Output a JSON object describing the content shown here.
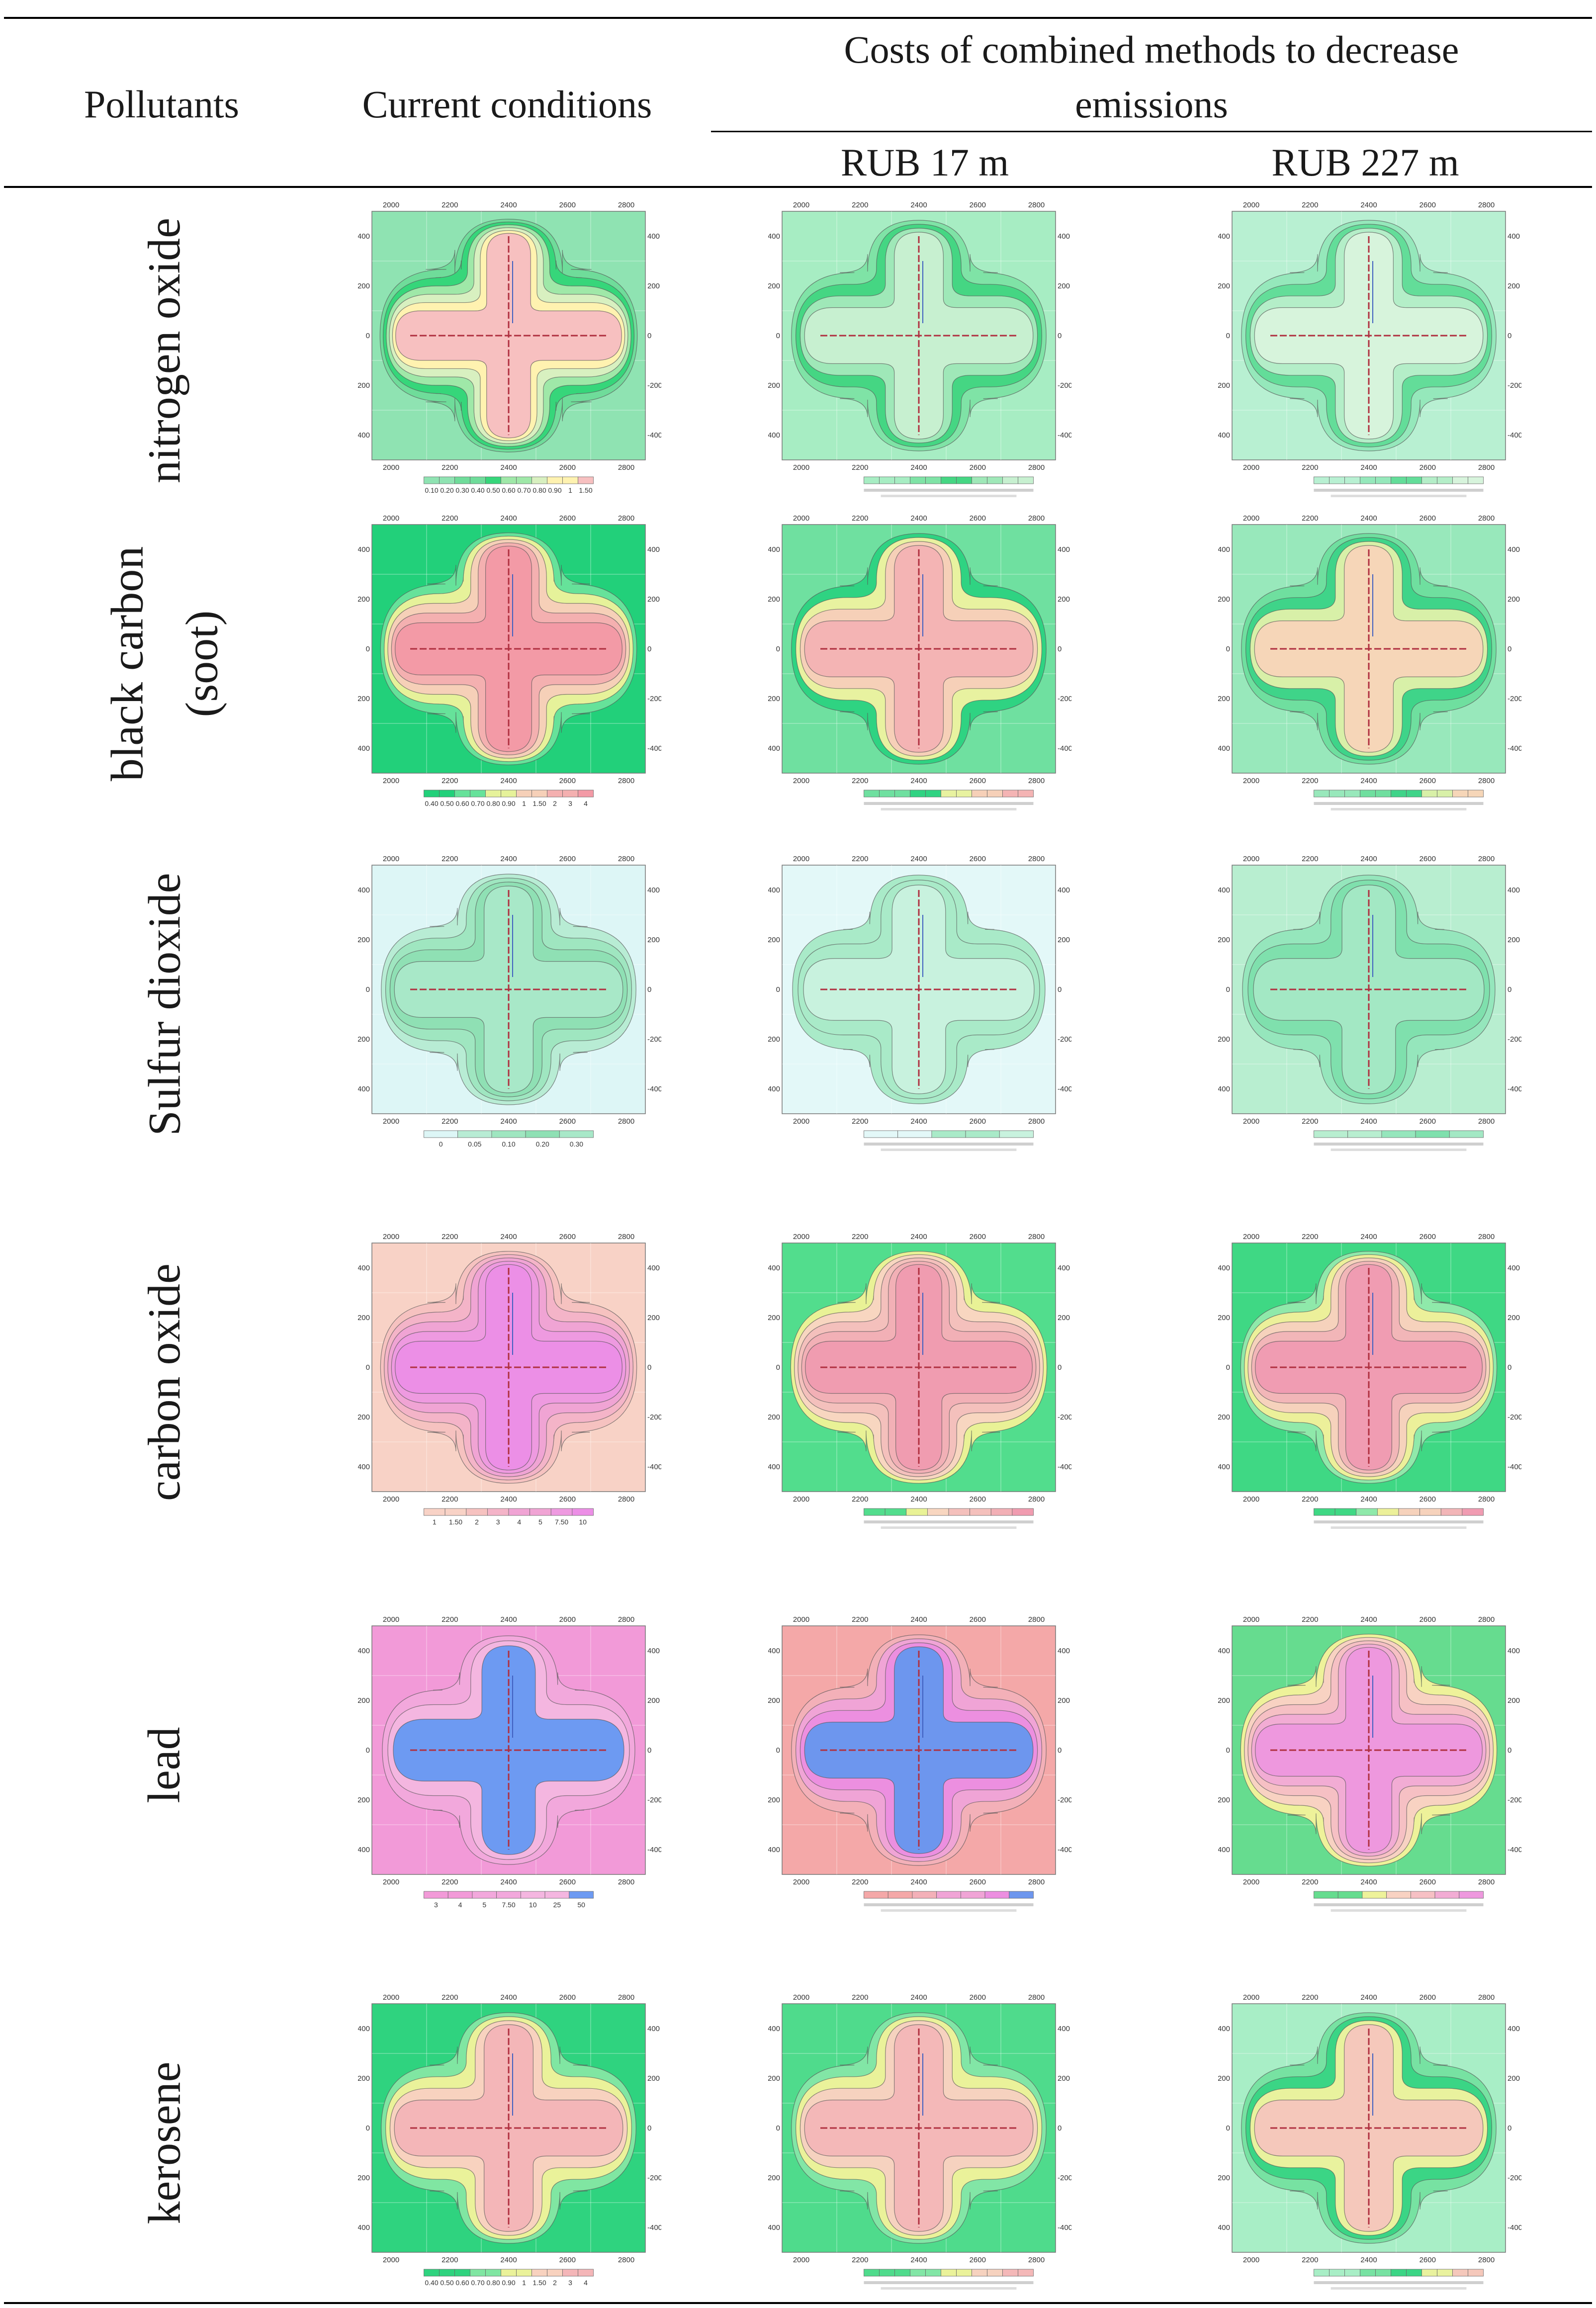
{
  "header": {
    "col1": "Pollutants",
    "col2": "Current conditions",
    "col3_group_line1": "Costs of combined methods to decrease",
    "col3_group_line2": "emissions",
    "col3a": "RUB 17 m",
    "col3b": "RUB 227 m"
  },
  "axes": {
    "x_ticks": [
      "2000",
      "2200",
      "2400",
      "2600",
      "2800"
    ],
    "y_ticks": [
      "400",
      "200",
      "0",
      "-200",
      "-400"
    ]
  },
  "rows": [
    {
      "label": "nitrogen oxide",
      "label_line2": "",
      "scale": [
        "0.10",
        "0.20",
        "0.30",
        "0.40",
        "0.50",
        "0.60",
        "0.70",
        "0.80",
        "0.90",
        "1",
        "1.50"
      ],
      "maps": [
        {
          "bg": "#8fe3b2",
          "bands": [
            "#6fdc9a",
            "#36d67a",
            "#9fe8a8",
            "#d8f0c0",
            "#fff2b0",
            "#f7c0c0"
          ]
        },
        {
          "bg": "#a7edc3",
          "bands": [
            "#7fe3a6",
            "#45d683",
            "#9fe8b8",
            "#c7f0d0"
          ]
        },
        {
          "bg": "#b8f0d2",
          "bands": [
            "#95e8bb",
            "#63dd99",
            "#b4eec8",
            "#d7f4dc"
          ]
        }
      ]
    },
    {
      "label": "black carbon",
      "label_line2": "(soot)",
      "scale": [
        "0.40",
        "0.50",
        "0.60",
        "0.70",
        "0.80",
        "0.90",
        "1",
        "1.50",
        "2",
        "3",
        "4"
      ],
      "maps": [
        {
          "bg": "#22d07a",
          "bands": [
            "#66e29a",
            "#e6f29a",
            "#f6d0b8",
            "#f4b0b0",
            "#f39aa6"
          ]
        },
        {
          "bg": "#6fe0a0",
          "bands": [
            "#2fd382",
            "#e8f2a0",
            "#f6d0b8",
            "#f4b4b4"
          ]
        },
        {
          "bg": "#98e8bb",
          "bands": [
            "#6fdf9f",
            "#3fd489",
            "#d8f0a8",
            "#f6d6b8"
          ]
        }
      ]
    },
    {
      "label": "Sulfur dioxide",
      "label_line2": "",
      "scale": [
        "0",
        "0.05",
        "0.10",
        "0.20",
        "0.30"
      ],
      "maps": [
        {
          "bg": "#ddf6f6",
          "bands": [
            "#b8ecd4",
            "#9fe6c0",
            "#8fe0b4",
            "#a8e8c8"
          ]
        },
        {
          "bg": "#e3f8f8",
          "bands": [
            "#a9eac8",
            "#a9eac8",
            "#c8f2de"
          ]
        },
        {
          "bg": "#b8eed0",
          "bands": [
            "#95e6bc",
            "#7fe0ad",
            "#a3e8c4"
          ]
        }
      ]
    },
    {
      "label": "carbon oxide",
      "label_line2": "",
      "scale": [
        "1",
        "1.50",
        "2",
        "3",
        "4",
        "5",
        "7.50",
        "10"
      ],
      "maps": [
        {
          "bg": "#f8d2c6",
          "bands": [
            "#f6c2c0",
            "#f4b4c8",
            "#f0a4d4",
            "#ee9ae0",
            "#ec8fe6"
          ]
        },
        {
          "bg": "#52dd8d",
          "bands": [
            "#e9f296",
            "#f8d6c0",
            "#f4c0bc",
            "#f2b0b6",
            "#f09cb0"
          ]
        },
        {
          "bg": "#3fd884",
          "bands": [
            "#8fe9aa",
            "#ecf09a",
            "#f6d2bc",
            "#f2b6b8",
            "#f09cb2"
          ]
        }
      ]
    },
    {
      "label": "lead",
      "label_line2": "",
      "scale": [
        "3",
        "4",
        "5",
        "7.50",
        "10",
        "25",
        "50"
      ],
      "maps": [
        {
          "bg": "#f29ad8",
          "bands": [
            "#f2a8dc",
            "#f4b6e0",
            "#6d9af2"
          ]
        },
        {
          "bg": "#f4a8a8",
          "bands": [
            "#f3b0b8",
            "#f0a4d6",
            "#ec8fe0",
            "#6d96ee"
          ]
        },
        {
          "bg": "#66dc8f",
          "bands": [
            "#eef29a",
            "#f8d2c2",
            "#f6c0c4",
            "#f2acd4",
            "#ee98de"
          ]
        }
      ]
    },
    {
      "label": "kerosene",
      "label_line2": "",
      "scale": [
        "0.40",
        "0.50",
        "0.60",
        "0.70",
        "0.80",
        "0.90",
        "1",
        "1.50",
        "2",
        "3",
        "4"
      ],
      "maps": [
        {
          "bg": "#2fd37f",
          "bands": [
            "#80e6a2",
            "#eaf29a",
            "#f8d2bf",
            "#f4b6b8"
          ]
        },
        {
          "bg": "#4fdb8c",
          "bands": [
            "#82e6a6",
            "#eaf29a",
            "#f6d2bf",
            "#f4b8b8"
          ]
        },
        {
          "bg": "#a8eec6",
          "bands": [
            "#77e2a2",
            "#3bd585",
            "#e9f29e",
            "#f5c8bb"
          ]
        }
      ]
    }
  ]
}
